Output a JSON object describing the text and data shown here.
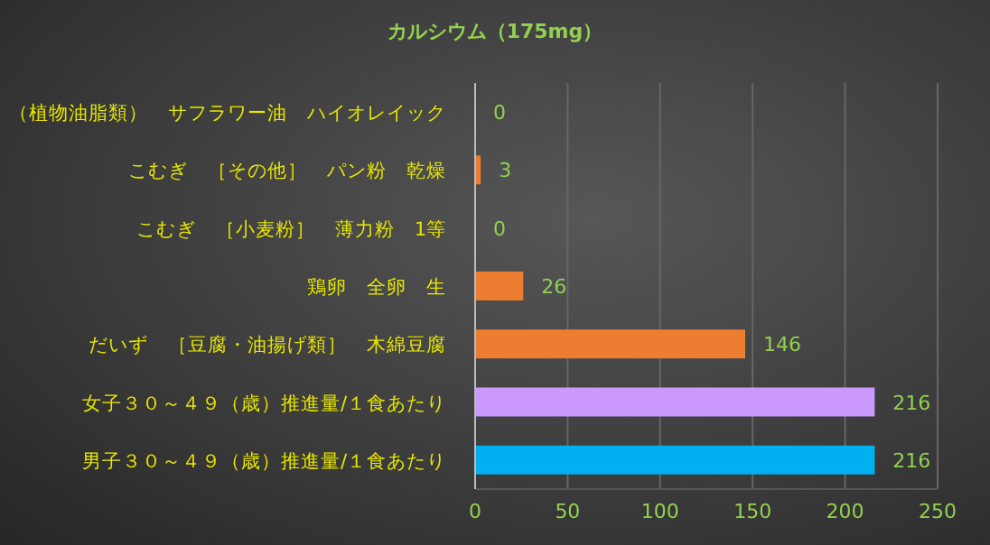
{
  "chart_data": {
    "type": "bar",
    "orientation": "horizontal",
    "title": "カルシウム（175mg）",
    "categories": [
      "（植物油脂類）　サフラワー油　ハイオレイック",
      "こむぎ　［その他］　パン粉　乾燥",
      "こむぎ　［小麦粉］　薄力粉　1等",
      "鶏卵　全卵　生",
      "だいず　［豆腐・油揚げ類］　木綿豆腐",
      "女子３０～４９（歳）推進量/１食あたり",
      "男子３０～４９（歳）推進量/１食あたり"
    ],
    "values": [
      0,
      3,
      0,
      26,
      146,
      216,
      216
    ],
    "colors": [
      "#ed7d31",
      "#ed7d31",
      "#ed7d31",
      "#ed7d31",
      "#ed7d31",
      "#cc99ff",
      "#00b0f0"
    ],
    "xlim": [
      0,
      250
    ],
    "xticks": [
      0,
      50,
      100,
      150,
      200,
      250
    ],
    "grid": "x",
    "data_labels": true
  }
}
